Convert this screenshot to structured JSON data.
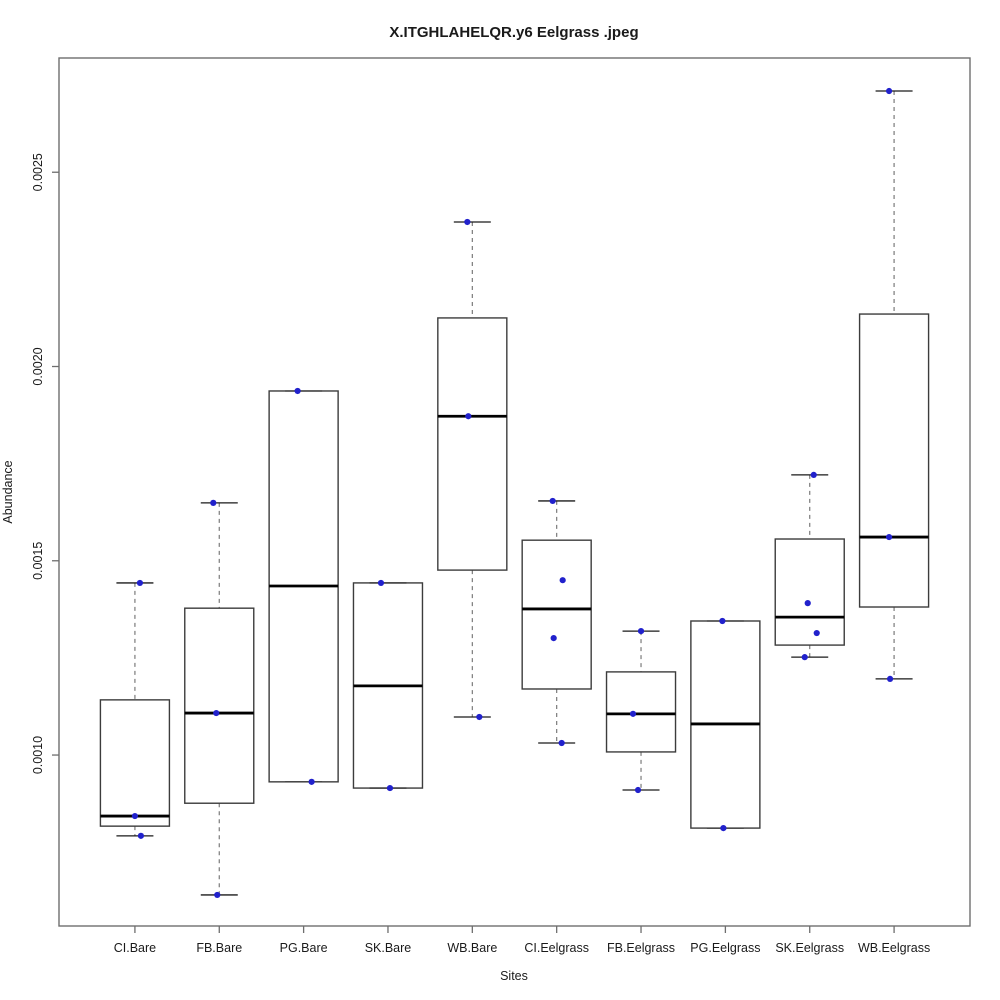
{
  "page": {
    "background": "#ffffff"
  },
  "chart_data": {
    "type": "boxplot",
    "title": "X.ITGHLAHELQR.y6 Eelgrass .jpeg",
    "xlabel": "Sites",
    "ylabel": "Abundance",
    "ylim": [
      0.00056,
      0.002794
    ],
    "yticks": [
      0.001,
      0.0015,
      0.002,
      0.0025
    ],
    "ytick_labels": [
      "0.0010",
      "0.0015",
      "0.0020",
      "0.0025"
    ],
    "grid": false,
    "legend": "none",
    "categories": [
      "CI.Bare",
      "FB.Bare",
      "PG.Bare",
      "SK.Bare",
      "WB.Bare",
      "CI.Eelgrass",
      "FB.Eelgrass",
      "PG.Eelgrass",
      "SK.Eelgrass",
      "WB.Eelgrass"
    ],
    "groups": [
      {
        "label": "CI.Bare",
        "whisker_low": 0.000792,
        "q1": 0.000817,
        "median": 0.000843,
        "q3": 0.001142,
        "whisker_high": 0.001443,
        "points": [
          {
            "value": 0.001443,
            "dx": 5
          },
          {
            "value": 0.000843,
            "dx": 0
          },
          {
            "value": 0.000792,
            "dx": 6
          }
        ]
      },
      {
        "label": "FB.Bare",
        "whisker_low": 0.00064,
        "q1": 0.000876,
        "median": 0.001108,
        "q3": 0.001378,
        "whisker_high": 0.001649,
        "points": [
          {
            "value": 0.001649,
            "dx": -6
          },
          {
            "value": 0.001108,
            "dx": -3
          },
          {
            "value": 0.00064,
            "dx": -2
          }
        ]
      },
      {
        "label": "PG.Bare",
        "whisker_low": 0.000931,
        "q1": 0.000931,
        "median": 0.001435,
        "q3": 0.001937,
        "whisker_high": 0.001937,
        "points": [
          {
            "value": 0.001937,
            "dx": -6
          },
          {
            "value": 0.000931,
            "dx": 8
          }
        ]
      },
      {
        "label": "SK.Bare",
        "whisker_low": 0.000915,
        "q1": 0.000915,
        "median": 0.001178,
        "q3": 0.001443,
        "whisker_high": 0.001443,
        "points": [
          {
            "value": 0.001443,
            "dx": -7
          },
          {
            "value": 0.000915,
            "dx": 2
          }
        ]
      },
      {
        "label": "WB.Bare",
        "whisker_low": 0.001098,
        "q1": 0.001476,
        "median": 0.001872,
        "q3": 0.002125,
        "whisker_high": 0.002372,
        "points": [
          {
            "value": 0.002372,
            "dx": -5
          },
          {
            "value": 0.001872,
            "dx": -4
          },
          {
            "value": 0.001098,
            "dx": 7
          }
        ]
      },
      {
        "label": "CI.Eelgrass",
        "whisker_low": 0.001031,
        "q1": 0.00117,
        "median": 0.001376,
        "q3": 0.001553,
        "whisker_high": 0.001654,
        "points": [
          {
            "value": 0.001654,
            "dx": -4
          },
          {
            "value": 0.00145,
            "dx": 6
          },
          {
            "value": 0.001301,
            "dx": -3
          },
          {
            "value": 0.001031,
            "dx": 5
          }
        ]
      },
      {
        "label": "FB.Eelgrass",
        "whisker_low": 0.00091,
        "q1": 0.001008,
        "median": 0.001106,
        "q3": 0.001214,
        "whisker_high": 0.001319,
        "points": [
          {
            "value": 0.001319,
            "dx": 0
          },
          {
            "value": 0.001106,
            "dx": -8
          },
          {
            "value": 0.00091,
            "dx": -3
          }
        ]
      },
      {
        "label": "PG.Eelgrass",
        "whisker_low": 0.000812,
        "q1": 0.000812,
        "median": 0.00108,
        "q3": 0.001345,
        "whisker_high": 0.001345,
        "points": [
          {
            "value": 0.001345,
            "dx": -3
          },
          {
            "value": 0.000812,
            "dx": -2
          }
        ]
      },
      {
        "label": "SK.Eelgrass",
        "whisker_low": 0.001252,
        "q1": 0.001283,
        "median": 0.001355,
        "q3": 0.001556,
        "whisker_high": 0.001721,
        "points": [
          {
            "value": 0.001721,
            "dx": 4
          },
          {
            "value": 0.001391,
            "dx": -2
          },
          {
            "value": 0.001314,
            "dx": 7
          },
          {
            "value": 0.001252,
            "dx": -5
          }
        ]
      },
      {
        "label": "WB.Eelgrass",
        "whisker_low": 0.001196,
        "q1": 0.001381,
        "median": 0.001561,
        "q3": 0.002135,
        "whisker_high": 0.002709,
        "points": [
          {
            "value": 0.002709,
            "dx": -5
          },
          {
            "value": 0.001561,
            "dx": -5
          },
          {
            "value": 0.001196,
            "dx": -4
          }
        ]
      }
    ],
    "colors": {
      "box_stroke": "#3c3c3c",
      "median": "#000000",
      "whisker": "#7a7a7a",
      "cap": "#1a1a1a",
      "point": "#2121cc",
      "frame": "#6e6e6e",
      "text": "#1a1a1a"
    }
  }
}
